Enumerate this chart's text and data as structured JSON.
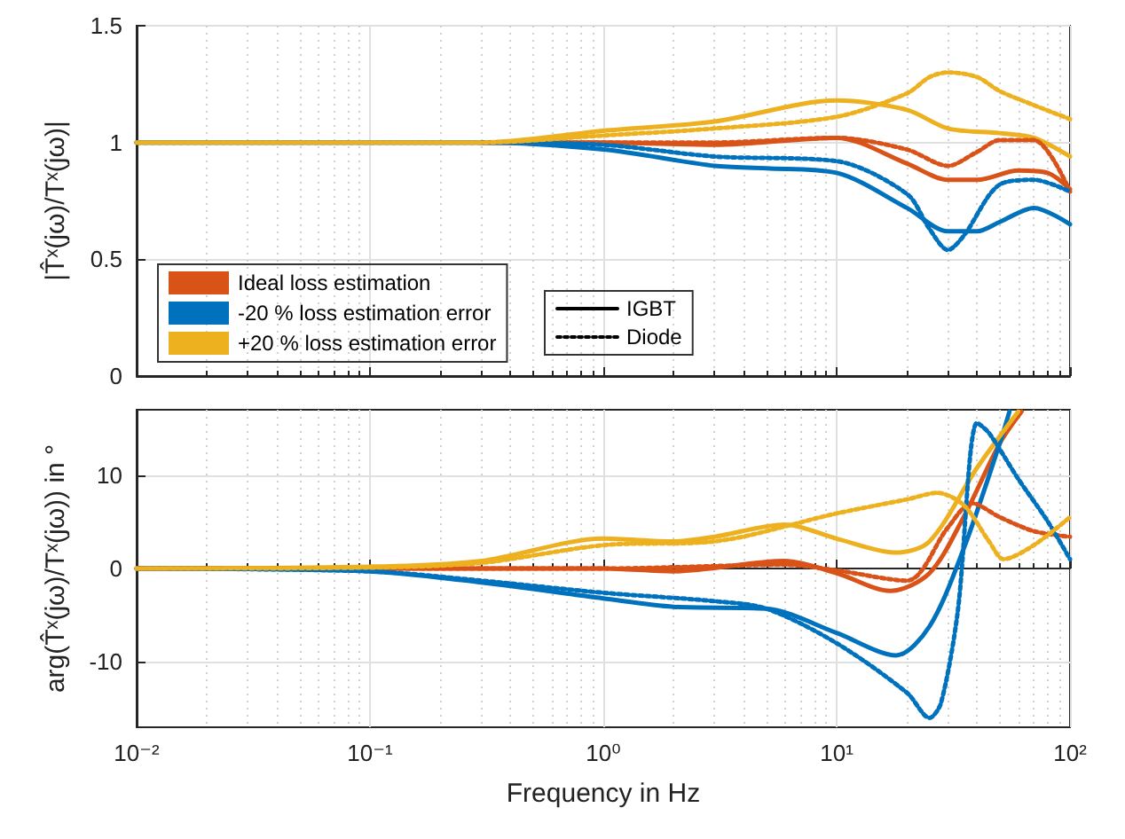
{
  "chart_data": [
    {
      "type": "line",
      "ylabel": "|T̂ˣ(jω)/Tˣ(jω)|",
      "log": "x",
      "grid": true,
      "legend": "bottom left",
      "tick_labels": "y",
      "xlim": [
        0.01,
        100
      ],
      "xticks": [
        {
          "value": 0.01,
          "label": null
        },
        {
          "value": 0.1,
          "label": null
        },
        {
          "value": 1,
          "label": null
        },
        {
          "value": 10,
          "label": null
        },
        {
          "value": 100,
          "label": null
        }
      ],
      "ylim": [
        0,
        1.5
      ],
      "yticks": [
        0,
        0.5,
        1,
        1.5
      ],
      "series": [
        {
          "name": "Ideal loss estimation",
          "color": "#d95319",
          "line_style": "solid",
          "x": [
            0.3,
            1,
            3,
            10,
            20,
            30,
            40,
            60,
            80,
            100
          ],
          "values": [
            1,
            1,
            0.99,
            1.02,
            0.91,
            0.84,
            0.84,
            0.88,
            0.87,
            0.8
          ]
        },
        {
          "name": "-20 % loss estimation error",
          "color": "#0072bd",
          "line_style": "solid",
          "x": [
            0.01,
            0.1,
            0.3,
            1,
            3,
            5,
            10,
            20,
            30,
            40,
            50,
            70,
            100
          ],
          "values": [
            1,
            1,
            1,
            0.97,
            0.9,
            0.89,
            0.87,
            0.72,
            0.62,
            0.62,
            0.66,
            0.72,
            0.65
          ]
        },
        {
          "name": "+20 % loss estimation error",
          "color": "#edb120",
          "line_style": "solid",
          "x": [
            0.01,
            0.1,
            0.3,
            1,
            3,
            10,
            20,
            30,
            50,
            70,
            100
          ],
          "values": [
            1,
            1,
            1,
            1.05,
            1.09,
            1.18,
            1.14,
            1.06,
            1.04,
            1.02,
            0.94
          ]
        },
        {
          "color": "#d95319",
          "line_style": "dotted",
          "x": [
            0.3,
            1,
            3,
            10,
            20,
            30,
            40,
            50,
            70,
            100
          ],
          "values": [
            1,
            1,
            1,
            1.02,
            0.97,
            0.9,
            0.96,
            1.01,
            1.01,
            0.79
          ]
        },
        {
          "color": "#0072bd",
          "line_style": "dotted",
          "x": [
            0.01,
            0.1,
            0.3,
            1,
            3,
            10,
            20,
            25,
            30,
            35,
            50,
            70,
            100
          ],
          "values": [
            1,
            1,
            1,
            0.99,
            0.94,
            0.92,
            0.78,
            0.63,
            0.54,
            0.6,
            0.82,
            0.84,
            0.79
          ]
        },
        {
          "color": "#edb120",
          "line_style": "dotted",
          "x": [
            0.01,
            0.1,
            0.3,
            1,
            3,
            10,
            20,
            25,
            30,
            40,
            50,
            70,
            100
          ],
          "values": [
            1,
            1,
            1,
            1.03,
            1.06,
            1.11,
            1.21,
            1.28,
            1.3,
            1.28,
            1.22,
            1.16,
            1.1
          ]
        },
        {
          "name": "IGBT",
          "color": "#000000",
          "line_style": "solid"
        },
        {
          "name": "Diode",
          "color": "#000000",
          "line_style": "dotted"
        }
      ]
    },
    {
      "type": "line",
      "xlabel": "Frequency in Hz",
      "ylabel": "arg(T̂ˣ(jω)/Tˣ(jω)) in °",
      "log": "x",
      "grid": true,
      "xlim": [
        0.01,
        100
      ],
      "xticks": [
        {
          "value": 0.01,
          "label": "10⁻²"
        },
        {
          "value": 0.1,
          "label": "10⁻¹"
        },
        {
          "value": 1,
          "label": "10⁰"
        },
        {
          "value": 10,
          "label": "10¹"
        },
        {
          "value": 100,
          "label": "10²"
        }
      ],
      "ylim": [
        -17,
        17
      ],
      "yticks": [
        -10,
        0,
        10
      ],
      "series": [
        {
          "color": "#d95319",
          "line_style": "solid",
          "x": [
            0.01,
            0.1,
            0.3,
            1,
            2,
            6,
            10,
            17,
            25,
            35,
            50,
            62
          ],
          "values": [
            0,
            0,
            0,
            0,
            -0.3,
            0.8,
            -0.5,
            -2.4,
            -0.5,
            5.5,
            13.4,
            16.8
          ]
        },
        {
          "color": "#0072bd",
          "line_style": "solid",
          "x": [
            0.01,
            0.1,
            0.3,
            1,
            2,
            5,
            10,
            18,
            25,
            35,
            50,
            55
          ],
          "values": [
            0,
            -0.3,
            -1.5,
            -3.2,
            -4.1,
            -4.3,
            -6.9,
            -9.3,
            -6.2,
            2.1,
            13.4,
            16.8
          ]
        },
        {
          "color": "#edb120",
          "line_style": "solid",
          "x": [
            0.01,
            0.1,
            0.3,
            1,
            2,
            3,
            6,
            10,
            18,
            25,
            40,
            60
          ],
          "values": [
            0,
            0.2,
            0.8,
            3.2,
            2.9,
            3.4,
            4.7,
            3.2,
            1.7,
            2.9,
            10.8,
            16.8
          ]
        },
        {
          "color": "#d95319",
          "line_style": "dotted",
          "x": [
            0.01,
            0.1,
            0.3,
            1,
            6,
            10,
            20,
            30,
            38,
            50,
            70,
            100
          ],
          "values": [
            0,
            0,
            0,
            0,
            0.4,
            -0.2,
            -1.3,
            4.4,
            7,
            5.5,
            4,
            3.4
          ]
        },
        {
          "color": "#0072bd",
          "line_style": "dotted",
          "x": [
            0.01,
            0.1,
            0.3,
            1,
            3,
            5,
            10,
            20,
            25,
            28,
            33,
            40,
            45,
            60,
            80,
            100
          ],
          "values": [
            0,
            -0.3,
            -1.3,
            -2.6,
            -3.5,
            -4.3,
            -8,
            -13.3,
            -16,
            -14.4,
            -4.7,
            15.6,
            14.5,
            9.6,
            5.1,
            1
          ]
        },
        {
          "color": "#edb120",
          "line_style": "dotted",
          "x": [
            0.01,
            0.1,
            0.3,
            1,
            3,
            10,
            20,
            27,
            35,
            45,
            52,
            70,
            100
          ],
          "values": [
            0,
            0.1,
            0.6,
            2.5,
            2.9,
            5.9,
            7.4,
            8.1,
            6.8,
            2.9,
            1,
            2.5,
            5.5
          ]
        }
      ]
    }
  ]
}
